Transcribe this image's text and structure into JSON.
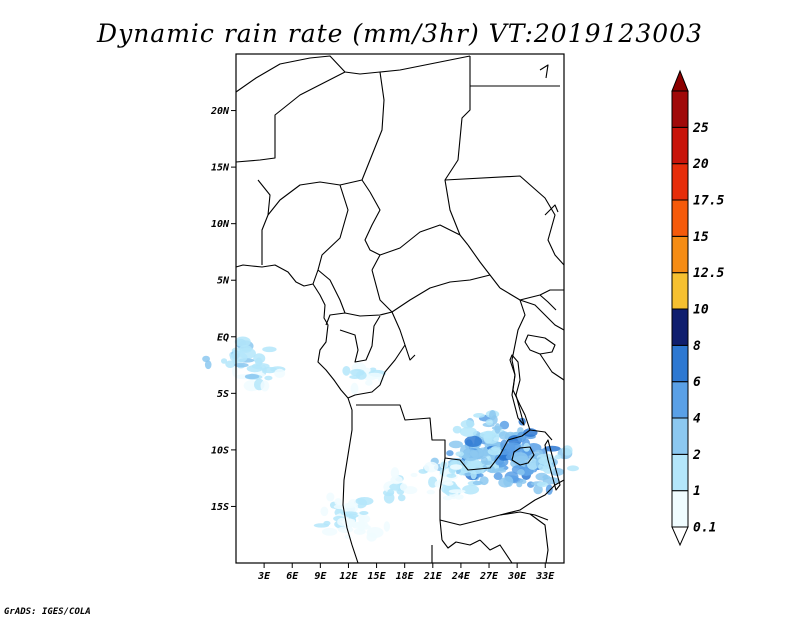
{
  "title": "Dynamic rain rate (mm/3hr) VT:2019123003",
  "credit": "GrADS: IGES/COLA",
  "map": {
    "lon_range": [
      0,
      35
    ],
    "lat_range": [
      -20,
      25
    ],
    "lat_ticks": [
      {
        "value": 20,
        "label": "20N"
      },
      {
        "value": 15,
        "label": "15N"
      },
      {
        "value": 10,
        "label": "10N"
      },
      {
        "value": 5,
        "label": "5N"
      },
      {
        "value": 0,
        "label": "EQ"
      },
      {
        "value": -5,
        "label": "5S"
      },
      {
        "value": -10,
        "label": "10S"
      },
      {
        "value": -15,
        "label": "15S"
      }
    ],
    "lon_ticks": [
      {
        "value": 3,
        "label": "3E"
      },
      {
        "value": 6,
        "label": "6E"
      },
      {
        "value": 9,
        "label": "9E"
      },
      {
        "value": 12,
        "label": "12E"
      },
      {
        "value": 15,
        "label": "15E"
      },
      {
        "value": 18,
        "label": "18E"
      },
      {
        "value": 21,
        "label": "21E"
      },
      {
        "value": 24,
        "label": "24E"
      },
      {
        "value": 27,
        "label": "27E"
      },
      {
        "value": 30,
        "label": "30E"
      },
      {
        "value": 33,
        "label": "33E"
      }
    ]
  },
  "colorbar": {
    "levels": [
      {
        "label": "0.1",
        "color": "#f0fcff"
      },
      {
        "label": "1",
        "color": "#b4e6fa"
      },
      {
        "label": "2",
        "color": "#8cc8f0"
      },
      {
        "label": "4",
        "color": "#5aa0e6"
      },
      {
        "label": "6",
        "color": "#2d78d2"
      },
      {
        "label": "8",
        "color": "#0f1e6e"
      },
      {
        "label": "10",
        "color": "#f6c030"
      },
      {
        "label": "12.5",
        "color": "#f58c14"
      },
      {
        "label": "15",
        "color": "#f55a0a"
      },
      {
        "label": "17.5",
        "color": "#e62d0a"
      },
      {
        "label": "20",
        "color": "#c8140a"
      },
      {
        "label": "25",
        "color": "#a00a0a"
      }
    ],
    "top_arrow_color": "#8c0000",
    "bottom_arrow_color": "#ffffff"
  },
  "rain_cells": [
    {
      "lon": 25.5,
      "lat": -10.2,
      "level": 3
    },
    {
      "lon": 27.8,
      "lat": -9.5,
      "level": 3
    },
    {
      "lon": 26.5,
      "lat": -11.2,
      "level": 2
    },
    {
      "lon": 29.2,
      "lat": -10.4,
      "level": 4
    },
    {
      "lon": 30.6,
      "lat": -11.6,
      "level": 3
    },
    {
      "lon": 33.2,
      "lat": -11.2,
      "level": 2
    },
    {
      "lon": 24.0,
      "lat": -11.8,
      "level": 2
    },
    {
      "lon": 22.6,
      "lat": -12.1,
      "level": 1
    },
    {
      "lon": 26.8,
      "lat": -8.7,
      "level": 2
    },
    {
      "lon": 23.0,
      "lat": -13.6,
      "level": 1
    },
    {
      "lon": 17.6,
      "lat": -13.1,
      "level": 1
    },
    {
      "lon": 12.0,
      "lat": -15.0,
      "level": 1
    },
    {
      "lon": 13.4,
      "lat": -16.6,
      "level": 1
    },
    {
      "lon": 11.3,
      "lat": -16.4,
      "level": 1
    },
    {
      "lon": 2.4,
      "lat": -3.3,
      "level": 1
    },
    {
      "lon": 0.4,
      "lat": -2.0,
      "level": 2
    },
    {
      "lon": 13.0,
      "lat": -3.2,
      "level": 1
    }
  ]
}
